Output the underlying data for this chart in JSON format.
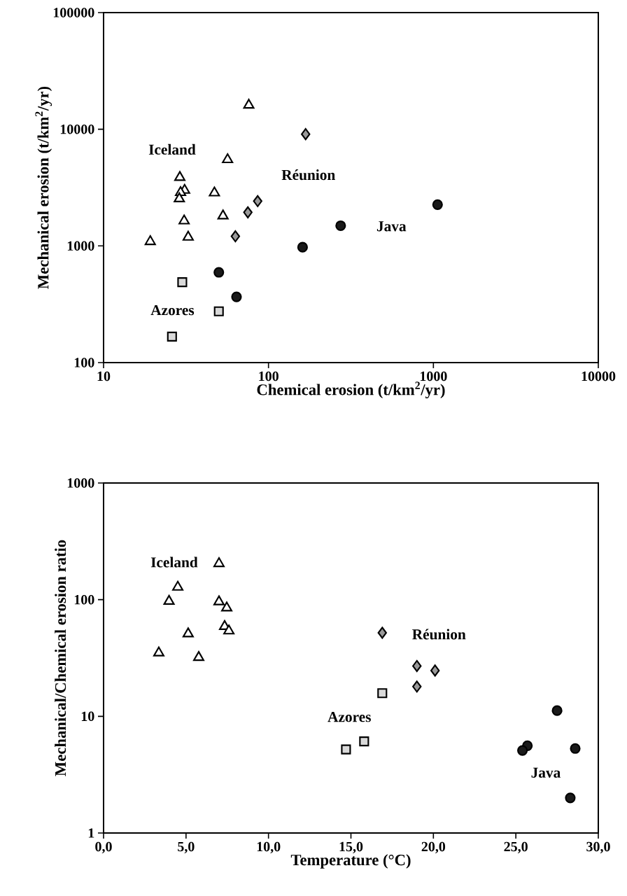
{
  "chart_data": [
    {
      "type": "scatter",
      "xlabel": "Chemical erosion (t/km$^{2}$/yr)",
      "ylabel": "Mechanical erosion (t/km$^{2}$/yr)",
      "log": "xy",
      "xlim": [
        10,
        10000
      ],
      "ylim": [
        100,
        100000
      ],
      "xticks": [
        10,
        100,
        1000,
        10000
      ],
      "yticks": [
        100,
        1000,
        10000,
        100000
      ],
      "series": [
        {
          "name": "Iceland",
          "marker": "triangle",
          "color": "#ffffff",
          "x": [
            76,
            56.5,
            29,
            31,
            29.3,
            28.8,
            47,
            53,
            30.8,
            32.6,
            19.2
          ],
          "values": [
            16100,
            5490,
            3870,
            3000,
            2870,
            2540,
            2850,
            1810,
            1640,
            1190,
            1090
          ]
        },
        {
          "name": "Réunion",
          "marker": "diamond",
          "color": "#999999",
          "x": [
            168,
            86,
            75,
            63
          ],
          "values": [
            9080,
            2420,
            1940,
            1210
          ]
        },
        {
          "name": "Java",
          "marker": "circle",
          "color": "#1a1a1a",
          "x": [
            1060,
            274,
            161,
            50,
            64
          ],
          "values": [
            2260,
            1490,
            975,
            594,
            366
          ]
        },
        {
          "name": "Azores",
          "marker": "square",
          "color": "#d9d9d9",
          "x": [
            30,
            50,
            26
          ],
          "values": [
            489,
            275,
            167
          ]
        }
      ]
    },
    {
      "type": "scatter",
      "xlabel": "Temperature (°C)",
      "ylabel": "Mechanical/Chemical erosion ratio",
      "log": "y",
      "xlim": [
        0,
        30
      ],
      "ylim": [
        1,
        1000
      ],
      "xticks": [
        {
          "value": 0,
          "label": "0,0"
        },
        {
          "value": 5,
          "label": "5,0"
        },
        {
          "value": 10,
          "label": "10,0"
        },
        {
          "value": 15,
          "label": "15,0"
        },
        {
          "value": 20,
          "label": "20,0"
        },
        {
          "value": 25,
          "label": "25,0"
        },
        {
          "value": 30,
          "label": "30,0"
        }
      ],
      "yticks": [
        1,
        10,
        100,
        1000
      ],
      "series": [
        {
          "name": "Iceland",
          "marker": "triangle",
          "color": "#ffffff",
          "x": [
            7.0,
            4.5,
            3.97,
            7.0,
            7.47,
            7.34,
            7.6,
            5.13,
            3.35,
            5.77
          ],
          "values": [
            204,
            128,
            97,
            96,
            85,
            59,
            54,
            51,
            35,
            32
          ]
        },
        {
          "name": "Réunion",
          "marker": "diamond",
          "color": "#999999",
          "x": [
            16.9,
            19.0,
            20.1,
            19.0
          ],
          "values": [
            52,
            27,
            24.7,
            18
          ]
        },
        {
          "name": "Azores",
          "marker": "square",
          "color": "#d9d9d9",
          "x": [
            16.9,
            15.8,
            14.7
          ],
          "values": [
            15.8,
            6.1,
            5.2
          ]
        },
        {
          "name": "Java",
          "marker": "circle",
          "color": "#1a1a1a",
          "x": [
            27.5,
            25.7,
            25.4,
            28.6,
            28.3
          ],
          "values": [
            11.2,
            5.6,
            5.1,
            5.3,
            2.0
          ]
        }
      ]
    }
  ]
}
